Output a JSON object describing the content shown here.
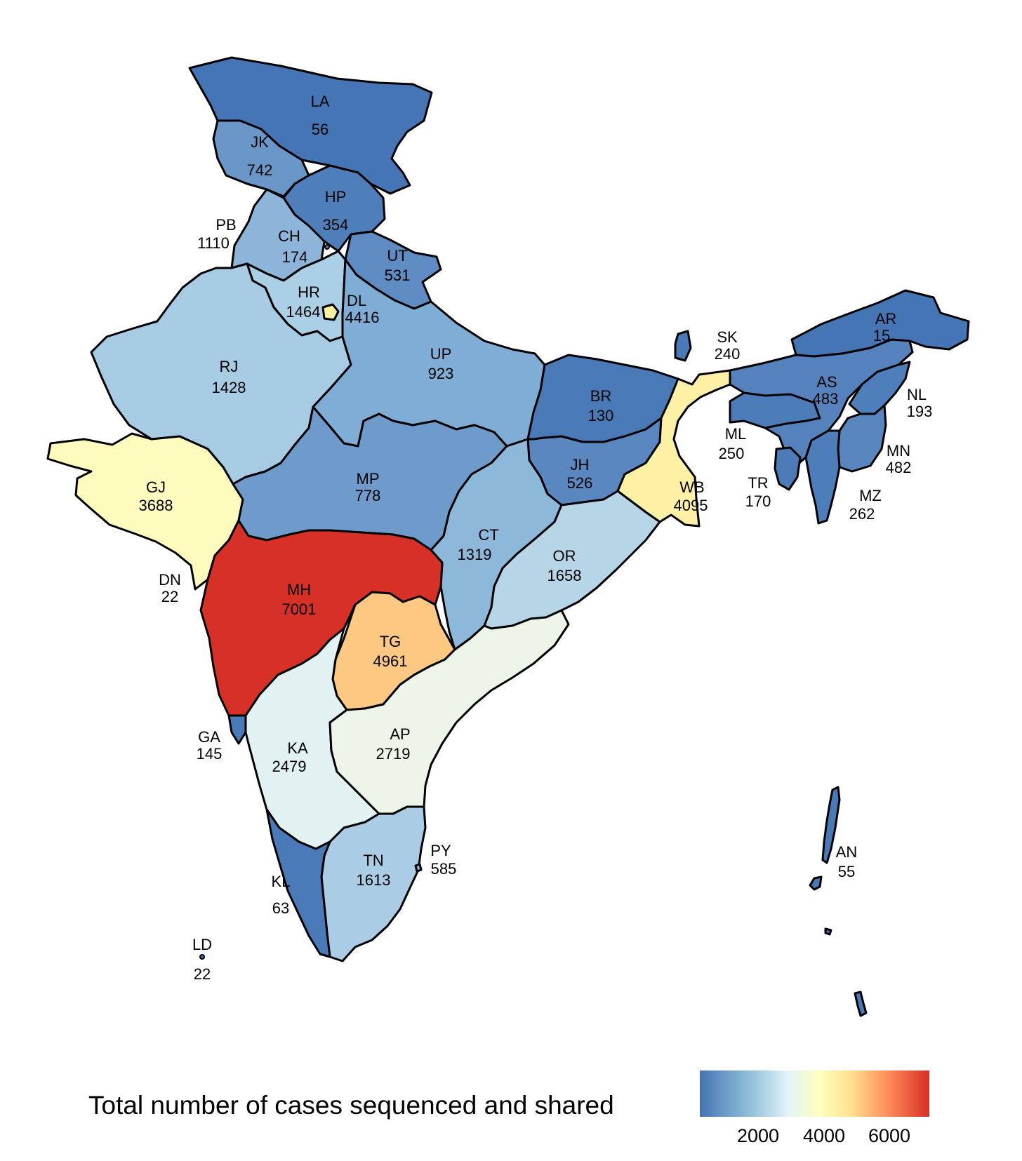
{
  "legend": {
    "title": "Total number of cases sequenced and shared",
    "ticks": [
      "2000",
      "4000",
      "6000"
    ],
    "scale_min": 15,
    "scale_max": 7001,
    "colors": [
      "#4575b4",
      "#91bfdb",
      "#e0f3f8",
      "#ffffbf",
      "#fee090",
      "#fc8d59",
      "#d73027"
    ]
  },
  "regions": [
    {
      "code": "LA",
      "value": "56"
    },
    {
      "code": "JK",
      "value": "742"
    },
    {
      "code": "HP",
      "value": "354"
    },
    {
      "code": "PB",
      "value": "1110"
    },
    {
      "code": "CH",
      "value": "174"
    },
    {
      "code": "UT",
      "value": "531"
    },
    {
      "code": "HR",
      "value": "1464"
    },
    {
      "code": "DL",
      "value": "4416"
    },
    {
      "code": "RJ",
      "value": "1428"
    },
    {
      "code": "UP",
      "value": "923"
    },
    {
      "code": "SK",
      "value": "240"
    },
    {
      "code": "AR",
      "value": "15"
    },
    {
      "code": "AS",
      "value": "483"
    },
    {
      "code": "NL",
      "value": "193"
    },
    {
      "code": "BR",
      "value": "130"
    },
    {
      "code": "ML",
      "value": "250"
    },
    {
      "code": "MN",
      "value": "482"
    },
    {
      "code": "GJ",
      "value": "3688"
    },
    {
      "code": "MP",
      "value": "778"
    },
    {
      "code": "JH",
      "value": "526"
    },
    {
      "code": "WB",
      "value": "4095"
    },
    {
      "code": "TR",
      "value": "170"
    },
    {
      "code": "MZ",
      "value": "262"
    },
    {
      "code": "CT",
      "value": "1319"
    },
    {
      "code": "OR",
      "value": "1658"
    },
    {
      "code": "DN",
      "value": "22"
    },
    {
      "code": "MH",
      "value": "7001"
    },
    {
      "code": "TG",
      "value": "4961"
    },
    {
      "code": "GA",
      "value": "145"
    },
    {
      "code": "KA",
      "value": "2479"
    },
    {
      "code": "AP",
      "value": "2719"
    },
    {
      "code": "AN",
      "value": "55"
    },
    {
      "code": "PY",
      "value": "585"
    },
    {
      "code": "TN",
      "value": "1613"
    },
    {
      "code": "KL",
      "value": "63"
    },
    {
      "code": "LD",
      "value": "22"
    }
  ]
}
